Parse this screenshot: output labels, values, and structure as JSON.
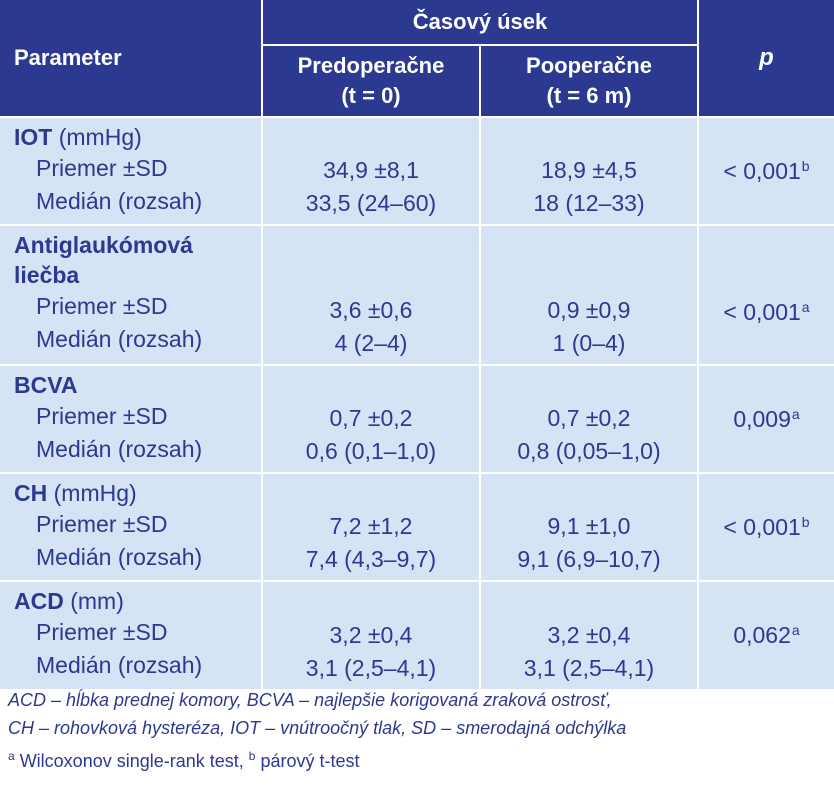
{
  "header": {
    "parameter": "Parameter",
    "group": "Časový úsek",
    "col_pre_line1": "Predoperačne",
    "col_pre_line2": "(t = 0)",
    "col_post_line1": "Pooperačne",
    "col_post_line2": "(t = 6 m)",
    "p": "p"
  },
  "rows": [
    {
      "name": "IOT",
      "unit": " (mmHg)",
      "name_line2": "",
      "sub1": "Priemer ±SD",
      "sub2": "Medián (rozsah)",
      "pre1": "34,9 ±8,1",
      "pre2": "33,5 (24–60)",
      "post1": "18,9 ±4,5",
      "post2": "18 (12–33)",
      "p": "< 0,001",
      "p_sup": "b"
    },
    {
      "name": "Antiglaukómová",
      "unit": "",
      "name_line2": "liečba",
      "sub1": "Priemer ±SD",
      "sub2": "Medián (rozsah)",
      "pre1": "3,6 ±0,6",
      "pre2": "4 (2–4)",
      "post1": "0,9 ±0,9",
      "post2": "1 (0–4)",
      "p": "< 0,001",
      "p_sup": "a"
    },
    {
      "name": "BCVA",
      "unit": "",
      "name_line2": "",
      "sub1": "Priemer ±SD",
      "sub2": "Medián (rozsah)",
      "pre1": "0,7 ±0,2",
      "pre2": "0,6 (0,1–1,0)",
      "post1": "0,7 ±0,2",
      "post2": "0,8 (0,05–1,0)",
      "p": "0,009",
      "p_sup": "a"
    },
    {
      "name": "CH",
      "unit": " (mmHg)",
      "name_line2": "",
      "sub1": "Priemer ±SD",
      "sub2": "Medián (rozsah)",
      "pre1": "7,2 ±1,2",
      "pre2": "7,4 (4,3–9,7)",
      "post1": "9,1 ±1,0",
      "post2": "9,1 (6,9–10,7)",
      "p": "< 0,001",
      "p_sup": "b"
    },
    {
      "name": "ACD",
      "unit": " (mm)",
      "name_line2": "",
      "sub1": "Priemer ±SD",
      "sub2": "Medián (rozsah)",
      "pre1": "3,2 ±0,4",
      "pre2": "3,1 (2,5–4,1)",
      "post1": "3,2 ±0,4",
      "post2": "3,1 (2,5–4,1)",
      "p": "0,062",
      "p_sup": "a"
    }
  ],
  "footer": {
    "line1": "ACD – hĺbka prednej komory, BCVA – najlepšie korigovaná zraková ostrosť,",
    "line2": "CH – rohovková hysteréza, IOT – vnútroočný tlak, SD – smerodajná odchýlka",
    "sup_a": "a",
    "test_a": " Wilcoxonov single-rank test, ",
    "sup_b": "b",
    "test_b": " párový t-test"
  },
  "colors": {
    "header_bg": "#2b3990",
    "body_bg": "#d5e3f5",
    "text": "#2b3990"
  }
}
